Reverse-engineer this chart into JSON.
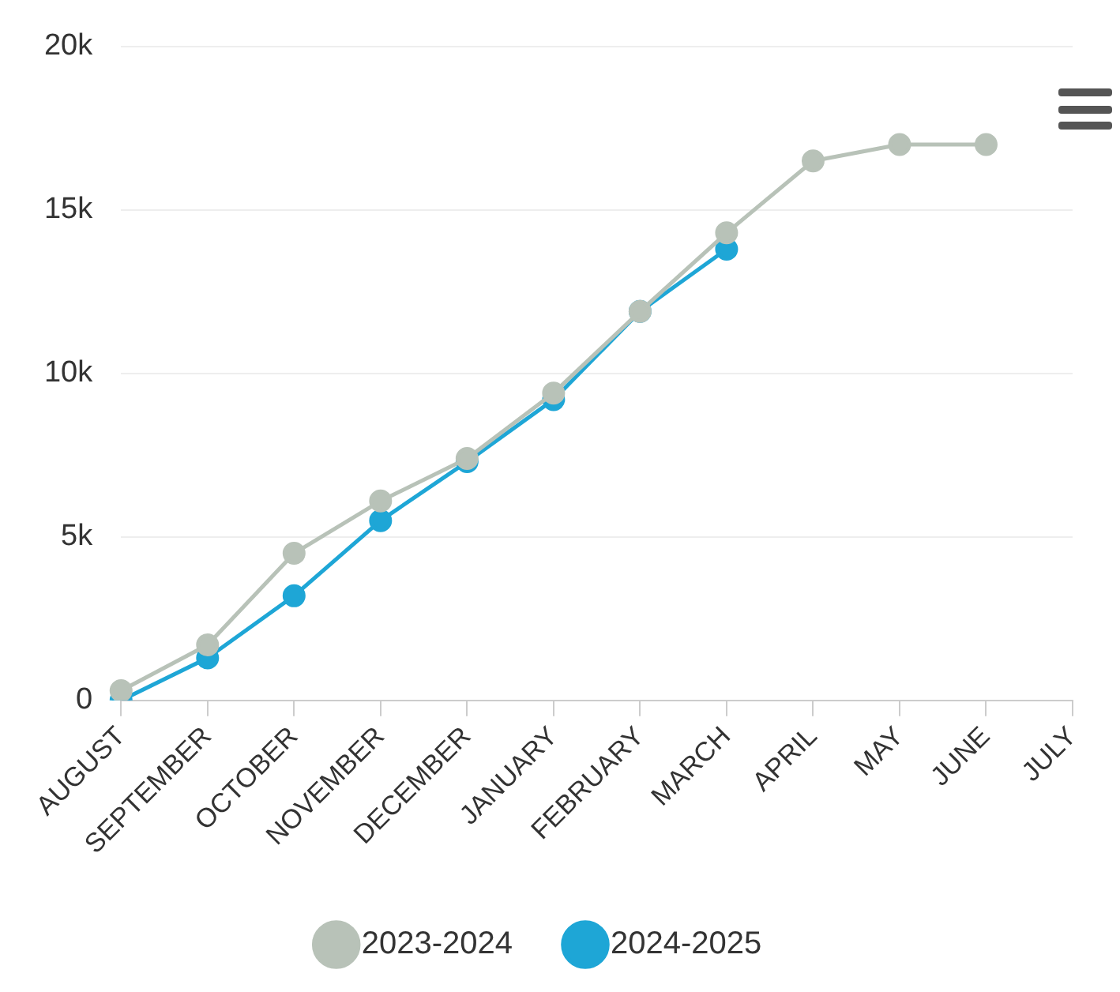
{
  "chart_data": {
    "type": "line",
    "categories": [
      "AUGUST",
      "SEPTEMBER",
      "OCTOBER",
      "NOVEMBER",
      "DECEMBER",
      "JANUARY",
      "FEBRUARY",
      "MARCH",
      "APRIL",
      "MAY",
      "JUNE",
      "JULY"
    ],
    "series": [
      {
        "name": "2023-2024",
        "color": "#b8c2b8",
        "values": [
          300,
          1700,
          4500,
          6100,
          7400,
          9400,
          11900,
          14300,
          16500,
          17000,
          17000,
          null
        ]
      },
      {
        "name": "2024-2025",
        "color": "#1ea6d6",
        "values": [
          0,
          1300,
          3200,
          5500,
          7300,
          9200,
          11900,
          13800,
          null,
          null,
          null,
          null
        ]
      }
    ],
    "ylim": [
      0,
      20000
    ],
    "yticks": [
      {
        "value": 0,
        "label": "0"
      },
      {
        "value": 5000,
        "label": "5k"
      },
      {
        "value": 10000,
        "label": "10k"
      },
      {
        "value": 15000,
        "label": "15k"
      },
      {
        "value": 20000,
        "label": "20k"
      }
    ],
    "grid": "y",
    "legend": "bottom",
    "marker": "circle",
    "line_style": "solid"
  }
}
